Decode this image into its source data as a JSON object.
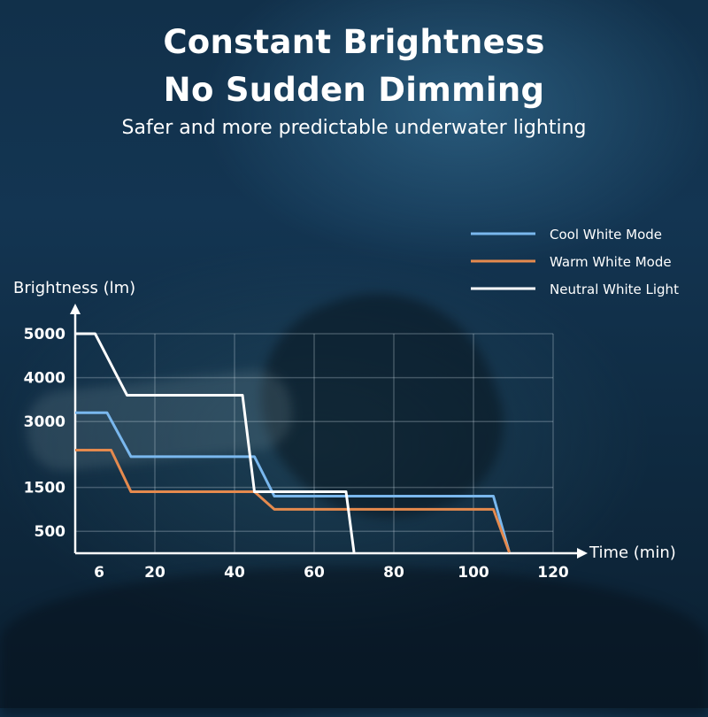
{
  "header": {
    "title_line1": "Constant Brightness",
    "title_line2": "No Sudden Dimming",
    "subtitle": "Safer and more predictable underwater lighting"
  },
  "chart_data": {
    "type": "line",
    "xlabel": "Time (min)",
    "ylabel": "Brightness (lm)",
    "x_ticks": [
      6,
      20,
      40,
      60,
      80,
      100,
      120
    ],
    "y_ticks": [
      500,
      1500,
      3000,
      4000,
      5000
    ],
    "xlim": [
      0,
      125
    ],
    "ylim": [
      0,
      5500
    ],
    "grid": true,
    "legend_position": "top-right",
    "series": [
      {
        "name": "Cool White Mode",
        "color": "#7ab8ee",
        "points": [
          [
            0,
            3200
          ],
          [
            8,
            3200
          ],
          [
            14,
            2200
          ],
          [
            45,
            2200
          ],
          [
            50,
            1300
          ],
          [
            105,
            1300
          ],
          [
            109,
            0
          ]
        ]
      },
      {
        "name": "Warm White Mode",
        "color": "#e58a4e",
        "points": [
          [
            0,
            2350
          ],
          [
            9,
            2350
          ],
          [
            14,
            1400
          ],
          [
            45,
            1400
          ],
          [
            50,
            1000
          ],
          [
            105,
            1000
          ],
          [
            109,
            0
          ]
        ]
      },
      {
        "name": "Neutral White Light",
        "color": "#ffffff",
        "points": [
          [
            0,
            5000
          ],
          [
            5,
            5000
          ],
          [
            13,
            3600
          ],
          [
            42,
            3600
          ],
          [
            45,
            1400
          ],
          [
            68,
            1400
          ],
          [
            70,
            0
          ]
        ]
      }
    ]
  }
}
